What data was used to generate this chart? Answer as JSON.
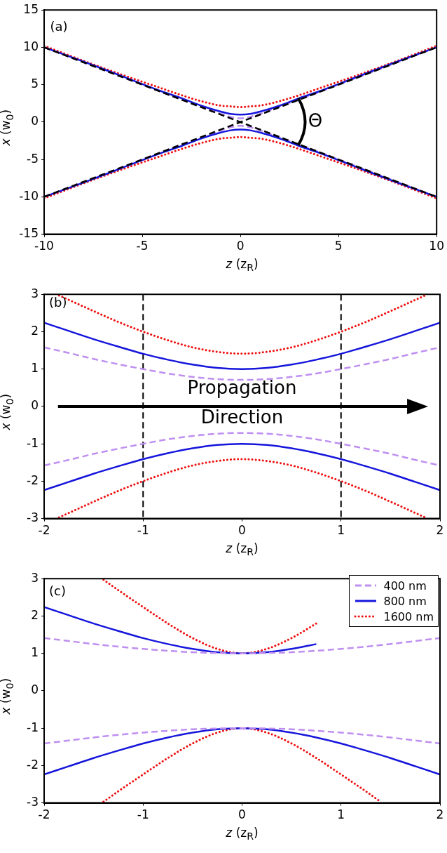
{
  "chart_data": [
    {
      "type": "line",
      "xlabel": "z (z$_{R}$)",
      "ylabel": "x (w$_{0}$)",
      "annotations": [
        "(a)",
        "Θ"
      ],
      "xlim": [
        -10,
        10
      ],
      "ylim": [
        -15,
        15
      ],
      "xticks": [
        -10,
        -5,
        0,
        5,
        10
      ],
      "yticks": [
        -15,
        -10,
        -5,
        0,
        5,
        10,
        15
      ],
      "x": [
        -10,
        -8,
        -6,
        -4,
        -3,
        -2,
        -1,
        -0.5,
        0,
        0.5,
        1,
        2,
        3,
        4,
        6,
        8,
        10
      ],
      "series": [
        {
          "color": "#000000",
          "line_style": "dashed",
          "x": [
            -10,
            10
          ],
          "values": [
            10,
            -10
          ]
        },
        {
          "color": "#000000",
          "line_style": "dashed",
          "x": [
            -10,
            10
          ],
          "values": [
            -10,
            10
          ]
        },
        {
          "color": "#1515dc",
          "line_style": "solid",
          "values": [
            10.0,
            8.1,
            6.1,
            4.1,
            3.2,
            2.2,
            1.4,
            1.1,
            1.0,
            1.1,
            1.4,
            2.2,
            3.2,
            4.1,
            6.1,
            8.1,
            10.0
          ]
        },
        {
          "color": "#1515dc",
          "line_style": "solid",
          "values": [
            -10.0,
            -8.1,
            -6.1,
            -4.1,
            -3.2,
            -2.2,
            -1.4,
            -1.1,
            -1.0,
            -1.1,
            -1.4,
            -2.2,
            -3.2,
            -4.1,
            -6.1,
            -8.1,
            -10.0
          ]
        },
        {
          "color": "#bf8ff0",
          "line_style": "dashed",
          "values": [
            10.0,
            8.0,
            6.0,
            4.0,
            3.0,
            2.1,
            1.1,
            0.7,
            0.5,
            0.7,
            1.1,
            2.1,
            3.0,
            4.0,
            6.0,
            8.0,
            10.0
          ]
        },
        {
          "color": "#bf8ff0",
          "line_style": "dashed",
          "values": [
            -10.0,
            -8.0,
            -6.0,
            -4.0,
            -3.0,
            -2.1,
            -1.1,
            -0.7,
            -0.5,
            -0.7,
            -1.1,
            -2.1,
            -3.0,
            -4.0,
            -6.0,
            -8.0,
            -10.0
          ]
        },
        {
          "color": "#ee1111",
          "line_style": "dotted",
          "values": [
            10.2,
            8.2,
            6.3,
            4.5,
            3.6,
            2.8,
            2.2,
            2.1,
            2.0,
            2.1,
            2.2,
            2.8,
            3.6,
            4.5,
            6.3,
            8.2,
            10.2
          ]
        },
        {
          "color": "#ee1111",
          "line_style": "dotted",
          "values": [
            -10.2,
            -8.2,
            -6.3,
            -4.5,
            -3.6,
            -2.8,
            -2.2,
            -2.1,
            -2.0,
            -2.1,
            -2.2,
            -2.8,
            -3.6,
            -4.5,
            -6.3,
            -8.2,
            -10.2
          ]
        }
      ]
    },
    {
      "type": "line",
      "xlabel": "z (z$_{R}$)",
      "ylabel": "x (w$_{0}$)",
      "annotations": [
        "(b)",
        "Propagation\nDirection"
      ],
      "xlim": [
        -2,
        2
      ],
      "ylim": [
        -3,
        3
      ],
      "xticks": [
        -2,
        -1,
        0,
        1,
        2
      ],
      "yticks": [
        -3,
        -2,
        -1,
        0,
        1,
        2,
        3
      ],
      "x": [
        -2,
        -1.75,
        -1.5,
        -1.25,
        -1,
        -0.75,
        -0.5,
        -0.25,
        0,
        0.25,
        0.5,
        0.75,
        1,
        1.25,
        1.5,
        1.75,
        2
      ],
      "ref_lines": [
        {
          "axis": "x",
          "value": -1,
          "color": "#000000",
          "line_style": "dashed"
        },
        {
          "axis": "x",
          "value": 1,
          "color": "#000000",
          "line_style": "dashed"
        }
      ],
      "series": [
        {
          "color": "#1515dc",
          "line_style": "solid",
          "values": [
            2.24,
            2.02,
            1.8,
            1.6,
            1.41,
            1.25,
            1.12,
            1.03,
            1,
            1.03,
            1.12,
            1.25,
            1.41,
            1.6,
            1.8,
            2.02,
            2.24
          ]
        },
        {
          "color": "#1515dc",
          "line_style": "solid",
          "values": [
            -2.24,
            -2.02,
            -1.8,
            -1.6,
            -1.41,
            -1.25,
            -1.12,
            -1.03,
            -1,
            -1.03,
            -1.12,
            -1.25,
            -1.41,
            -1.6,
            -1.8,
            -2.02,
            -2.24
          ]
        },
        {
          "color": "#bf8ff0",
          "line_style": "dashed",
          "values": [
            1.58,
            1.43,
            1.27,
            1.13,
            1.0,
            0.88,
            0.79,
            0.73,
            0.71,
            0.73,
            0.79,
            0.88,
            1.0,
            1.13,
            1.27,
            1.43,
            1.58
          ]
        },
        {
          "color": "#bf8ff0",
          "line_style": "dashed",
          "values": [
            -1.58,
            -1.43,
            -1.27,
            -1.13,
            -1.0,
            -0.88,
            -0.79,
            -0.73,
            -0.71,
            -0.73,
            -0.79,
            -0.88,
            -1.0,
            -1.13,
            -1.27,
            -1.43,
            -1.58
          ]
        },
        {
          "color": "#ee1111",
          "line_style": "dotted",
          "x": [
            -1.85,
            -1.75,
            -1.5,
            -1.25,
            -1,
            -0.75,
            -0.5,
            -0.25,
            0,
            0.25,
            0.5,
            0.75,
            1,
            1.25,
            1.5,
            1.75,
            1.85
          ],
          "values": [
            2.97,
            2.85,
            2.55,
            2.26,
            2.0,
            1.77,
            1.58,
            1.46,
            1.41,
            1.46,
            1.58,
            1.77,
            2.0,
            2.26,
            2.55,
            2.85,
            2.97
          ]
        },
        {
          "color": "#ee1111",
          "line_style": "dotted",
          "x": [
            -1.85,
            -1.75,
            -1.5,
            -1.25,
            -1,
            -0.75,
            -0.5,
            -0.25,
            0,
            0.25,
            0.5,
            0.75,
            1,
            1.25,
            1.5,
            1.75,
            1.85
          ],
          "values": [
            -2.97,
            -2.85,
            -2.55,
            -2.26,
            -2.0,
            -1.77,
            -1.58,
            -1.46,
            -1.41,
            -1.46,
            -1.58,
            -1.77,
            -2.0,
            -2.26,
            -2.55,
            -2.85,
            -2.97
          ]
        }
      ]
    },
    {
      "type": "line",
      "xlabel": "z (z$_{R}$)",
      "ylabel": "x (w$_{0}$)",
      "annotations": [
        "(c)"
      ],
      "legend": "top right",
      "xlim": [
        -2,
        2
      ],
      "ylim": [
        -3,
        3
      ],
      "xticks": [
        -2,
        -1,
        0,
        1,
        2
      ],
      "yticks": [
        -3,
        -2,
        -1,
        0,
        1,
        2,
        3
      ],
      "x": [
        -2,
        -1.75,
        -1.5,
        -1.25,
        -1,
        -0.75,
        -0.5,
        -0.25,
        0,
        0.25,
        0.5,
        0.75,
        1,
        1.25,
        1.5,
        1.75,
        2
      ],
      "series": [
        {
          "name": "400 nm",
          "color": "#bf8ff0",
          "line_style": "dashed",
          "values": [
            1.41,
            1.33,
            1.25,
            1.18,
            1.12,
            1.07,
            1.03,
            1.01,
            1,
            1.01,
            1.03,
            1.07,
            1.12,
            1.18,
            1.25,
            1.33,
            1.41
          ]
        },
        {
          "color": "#bf8ff0",
          "line_style": "dashed",
          "values": [
            -1.41,
            -1.33,
            -1.25,
            -1.18,
            -1.12,
            -1.07,
            -1.03,
            -1.01,
            -1,
            -1.01,
            -1.03,
            -1.07,
            -1.12,
            -1.18,
            -1.25,
            -1.33,
            -1.41
          ]
        },
        {
          "name": "800 nm",
          "color": "#1515dc",
          "line_style": "solid",
          "x": [
            -2,
            -1.75,
            -1.5,
            -1.25,
            -1,
            -0.75,
            -0.5,
            -0.25,
            0,
            0.25,
            0.5,
            0.75
          ],
          "values": [
            2.24,
            2.02,
            1.8,
            1.6,
            1.41,
            1.25,
            1.12,
            1.03,
            1,
            1.03,
            1.12,
            1.25
          ]
        },
        {
          "color": "#1515dc",
          "line_style": "solid",
          "values": [
            -2.24,
            -2.02,
            -1.8,
            -1.6,
            -1.41,
            -1.25,
            -1.12,
            -1.03,
            -1,
            -1.03,
            -1.12,
            -1.25,
            -1.41,
            -1.6,
            -1.8,
            -2.02,
            -2.24
          ]
        },
        {
          "name": "1600 nm",
          "color": "#ee1111",
          "line_style": "dotted",
          "x": [
            -1.4,
            -1.25,
            -1,
            -0.75,
            -0.5,
            -0.25,
            0,
            0.25,
            0.5,
            0.75
          ],
          "values": [
            2.97,
            2.69,
            2.24,
            1.8,
            1.41,
            1.12,
            1,
            1.12,
            1.41,
            1.8
          ]
        },
        {
          "color": "#ee1111",
          "line_style": "dotted",
          "x": [
            -1.4,
            -1.25,
            -1,
            -0.75,
            -0.5,
            -0.25,
            0,
            0.25,
            0.5,
            0.75,
            1,
            1.25,
            1.4
          ],
          "values": [
            -2.97,
            -2.69,
            -2.24,
            -1.8,
            -1.41,
            -1.12,
            -1,
            -1.12,
            -1.41,
            -1.8,
            -2.24,
            -2.69,
            -2.97
          ]
        }
      ]
    }
  ]
}
